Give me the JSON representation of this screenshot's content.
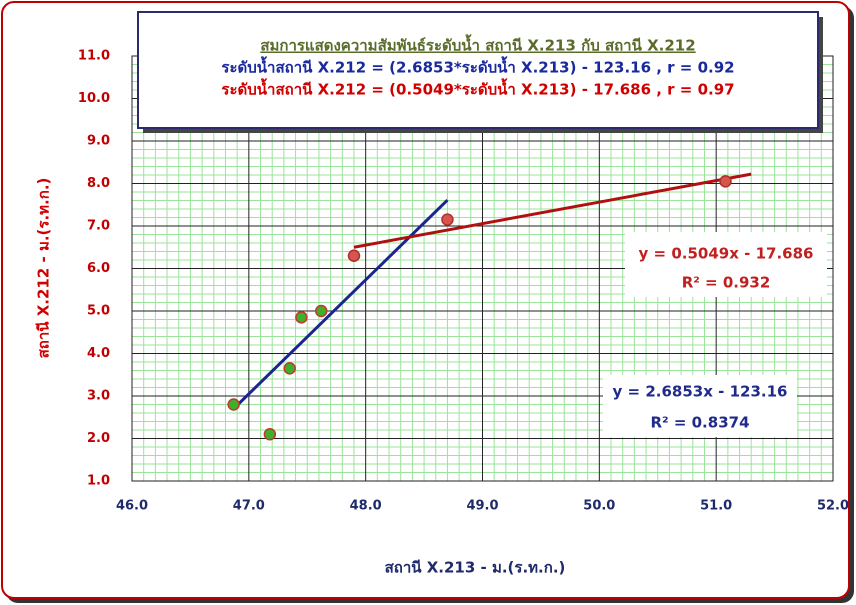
{
  "chart_data": {
    "type": "scatter",
    "annotations": {
      "title": "สมการแสดงความสัมพันธ์ระดับน้ำ สถานี X.213 กับ สถานี X.212",
      "equation_1": "ระดับน้ำสถานี X.212 = (2.6853*ระดับน้ำ X.213) - 123.16  ,  r = 0.92",
      "equation_2": "ระดับน้ำสถานี X.212 = (0.5049*ระดับน้ำ X.213) - 17.686  ,  r = 0.97",
      "trend_label_red": [
        "y = 0.5049x - 17.686",
        "R² = 0.932"
      ],
      "trend_label_blue": [
        "y = 2.6853x - 123.16",
        "R² = 0.8374"
      ]
    },
    "x_label": "สถานี X.213 - ม.(ร.ท.ก.)",
    "y_label": "สถานี X.212 - ม.(ร.ท.ก.)",
    "xlim": [
      46,
      52
    ],
    "ylim": [
      1,
      11
    ],
    "xticks": [
      {
        "value": 46,
        "label": "46.0"
      },
      {
        "value": 47,
        "label": "47.0"
      },
      {
        "value": 48,
        "label": "48.0"
      },
      {
        "value": 49,
        "label": "49.0"
      },
      {
        "value": 50,
        "label": "50.0"
      },
      {
        "value": 51,
        "label": "51.0"
      },
      {
        "value": 52,
        "label": "52.0"
      }
    ],
    "yticks": [
      {
        "value": 1,
        "label": "1.0"
      },
      {
        "value": 2,
        "label": "2.0"
      },
      {
        "value": 3,
        "label": "3.0"
      },
      {
        "value": 4,
        "label": "4.0"
      },
      {
        "value": 5,
        "label": "5.0"
      },
      {
        "value": 6,
        "label": "6.0"
      },
      {
        "value": 7,
        "label": "7.0"
      },
      {
        "value": 8,
        "label": "8.0"
      },
      {
        "value": 9,
        "label": "9.0"
      },
      {
        "value": 10,
        "label": "10.0"
      },
      {
        "value": 11,
        "label": "11.0"
      }
    ],
    "grid": true,
    "series": [
      {
        "color": "#3fae2a",
        "edge_color": "#c0392b",
        "x": [
          46.87,
          47.18,
          47.35,
          47.45,
          47.62
        ],
        "values": [
          2.8,
          2.1,
          3.65,
          4.85,
          5.0
        ],
        "trend_color": "#1a2590",
        "trend_x": [
          46.87,
          48.7
        ],
        "trend_y": [
          2.7,
          7.61
        ]
      },
      {
        "color": "#d9534f",
        "edge_color": "#a93226",
        "x": [
          47.9,
          48.7,
          51.08
        ],
        "values": [
          6.3,
          7.15,
          8.05
        ],
        "trend_color": "#b01010",
        "trend_x": [
          47.9,
          51.3
        ],
        "trend_y": [
          6.5,
          8.22
        ]
      }
    ]
  }
}
